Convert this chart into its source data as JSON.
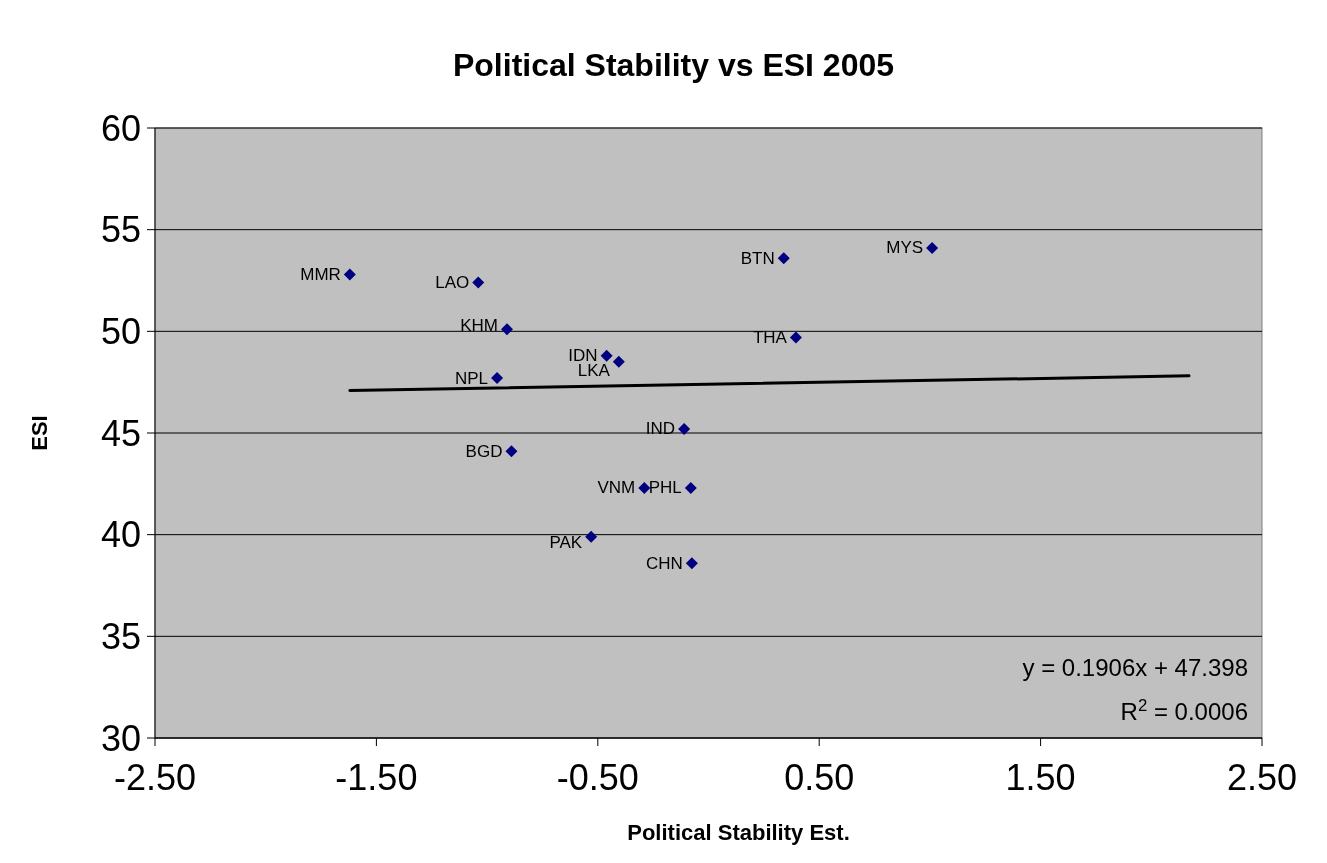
{
  "chart_data": {
    "type": "scatter",
    "title": "Political Stability vs ESI 2005",
    "xlabel": "Political Stability Est.",
    "ylabel": "ESI",
    "series": [
      {
        "marker": "diamond",
        "color": "#000080",
        "x": [
          -1.62,
          -1.04,
          -0.91,
          -0.955,
          -0.89,
          -0.46,
          -0.405,
          -0.53,
          -0.29,
          -0.08,
          -0.11,
          -0.075,
          0.34,
          0.395,
          1.01
        ],
        "values": [
          52.8,
          52.4,
          50.1,
          47.7,
          44.1,
          48.8,
          48.5,
          39.9,
          42.3,
          42.3,
          45.2,
          38.6,
          53.6,
          49.7,
          54.1
        ]
      },
      {
        "type": "line",
        "marker": "none",
        "color": "#000000",
        "x": [
          -1.62,
          2.17
        ],
        "values": [
          47.09,
          47.81
        ]
      }
    ],
    "annotations": [
      {
        "text": "MMR",
        "x": -1.62,
        "y": 52.8
      },
      {
        "text": "LAO",
        "x": -1.04,
        "y": 52.4
      },
      {
        "text": "KHM",
        "x": -0.91,
        "y": 50.1
      },
      {
        "text": "NPL",
        "x": -0.955,
        "y": 47.7
      },
      {
        "text": "BGD",
        "x": -0.89,
        "y": 44.1
      },
      {
        "text": "IDN",
        "x": -0.46,
        "y": 48.8
      },
      {
        "text": "LKA",
        "x": -0.405,
        "y": 48.5
      },
      {
        "text": "PAK",
        "x": -0.53,
        "y": 39.9
      },
      {
        "text": "VNM",
        "x": -0.29,
        "y": 42.3
      },
      {
        "text": "PHL",
        "x": -0.08,
        "y": 42.3
      },
      {
        "text": "IND",
        "x": -0.11,
        "y": 45.2
      },
      {
        "text": "CHN",
        "x": -0.075,
        "y": 38.6
      },
      {
        "text": "BTN",
        "x": 0.34,
        "y": 53.6
      },
      {
        "text": "THA",
        "x": 0.395,
        "y": 49.7
      },
      {
        "text": "MYS",
        "x": 1.01,
        "y": 54.1
      },
      "y = 0.1906x + 47.398",
      "R$^{2}$ = 0.0006"
    ],
    "xlim": [
      -2.5,
      2.5
    ],
    "xticks": [
      {
        "value": -2.5,
        "label": "-2.50"
      },
      {
        "value": -1.5,
        "label": "-1.50"
      },
      {
        "value": -0.5,
        "label": "-0.50"
      },
      {
        "value": 0.5,
        "label": "0.50"
      },
      {
        "value": 1.5,
        "label": "1.50"
      },
      {
        "value": 2.5,
        "label": "2.50"
      }
    ],
    "ylim": [
      30,
      60
    ],
    "yticks": [
      30,
      35,
      40,
      45,
      50,
      55,
      60
    ],
    "grid": "y"
  }
}
